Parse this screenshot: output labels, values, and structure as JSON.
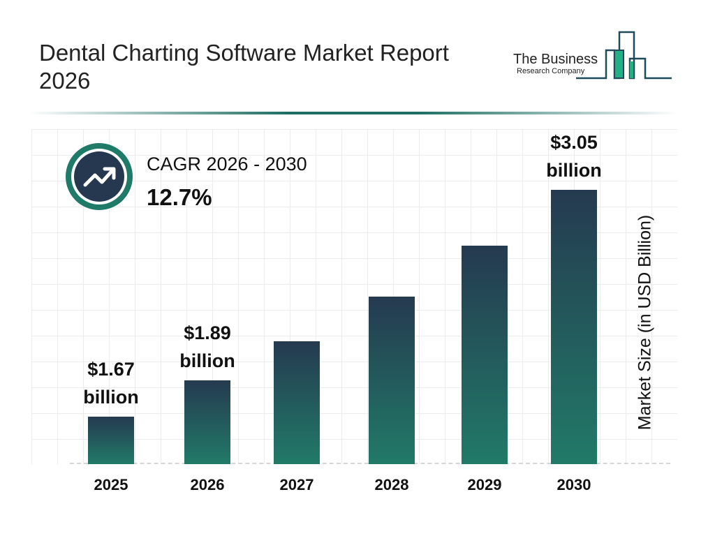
{
  "header": {
    "title": "Dental Charting Software Market Report 2026"
  },
  "logo": {
    "line1": "The Business",
    "line2": "Research Company"
  },
  "cagr": {
    "label": "CAGR 2026 - 2030",
    "value": "12.7%",
    "icon": "trending-up-icon"
  },
  "colors": {
    "bar_top": "#253a50",
    "bar_bottom": "#217a68",
    "accent": "#1f7a68"
  },
  "chart_data": {
    "type": "bar",
    "categories": [
      "2025",
      "2026",
      "2027",
      "2028",
      "2029",
      "2030"
    ],
    "values": [
      1.67,
      1.89,
      2.13,
      2.4,
      2.71,
      3.05
    ],
    "data_labels": [
      {
        "index": 0,
        "value": "$1.67",
        "unit": "billion"
      },
      {
        "index": 1,
        "value": "$1.89",
        "unit": "billion"
      },
      {
        "index": 5,
        "value": "$3.05",
        "unit": "billion"
      }
    ],
    "ylabel": "Market Size (in USD Billion)",
    "xlabel": "",
    "grid": true
  }
}
